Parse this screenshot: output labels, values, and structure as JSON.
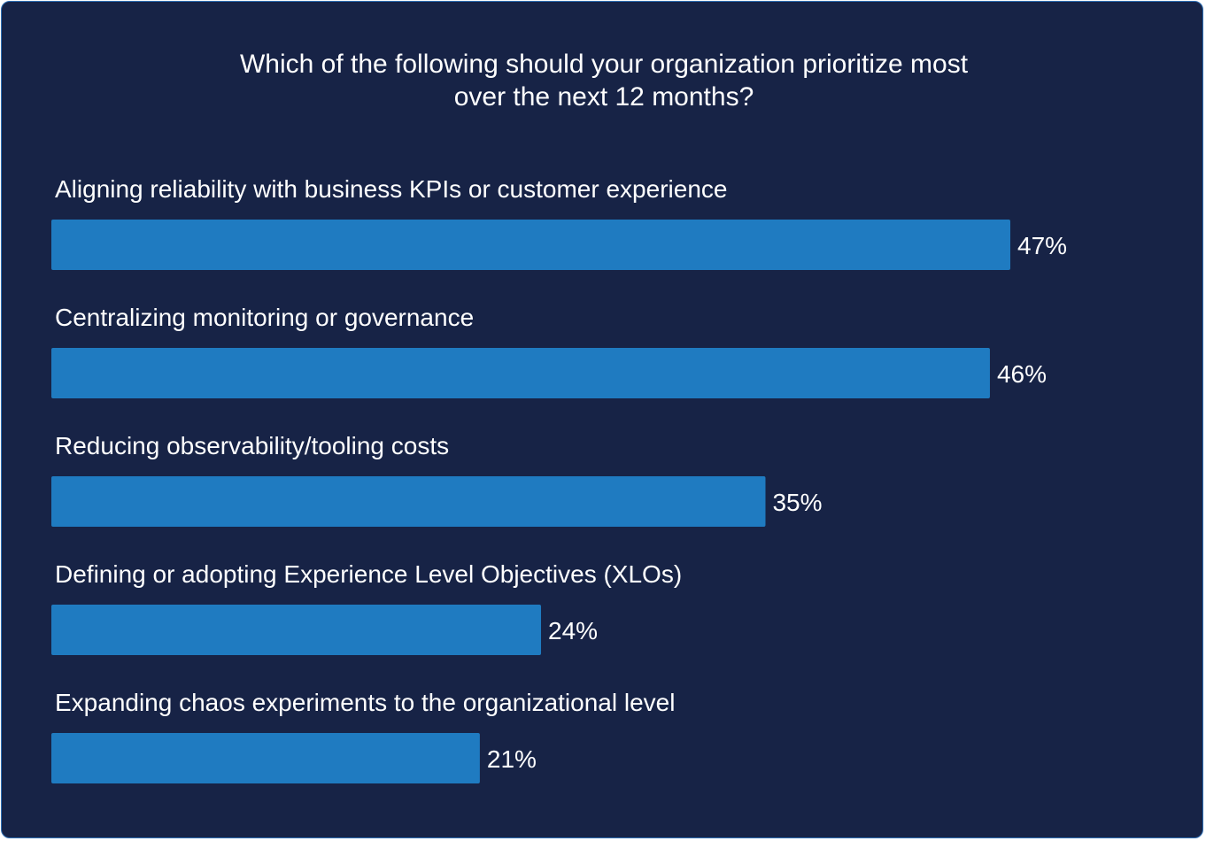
{
  "chart_data": {
    "type": "bar",
    "orientation": "horizontal",
    "title_lines": [
      "Which of the following should your organization prioritize most",
      "over the next 12 months?"
    ],
    "categories": [
      "Aligning reliability with business KPIs or customer experience",
      "Centralizing monitoring or governance",
      "Reducing observability/tooling costs",
      "Defining or adopting Experience Level Objectives (XLOs)",
      "Expanding chaos experiments to the organizational level"
    ],
    "values": [
      47,
      46,
      35,
      24,
      21
    ],
    "value_labels": [
      "47%",
      "46%",
      "35%",
      "24%",
      "21%"
    ],
    "unit": "%",
    "grid": false,
    "legend": "none",
    "colors": {
      "background": "#172346",
      "bar": "#1f7bc1",
      "text": "#ffffff"
    }
  }
}
